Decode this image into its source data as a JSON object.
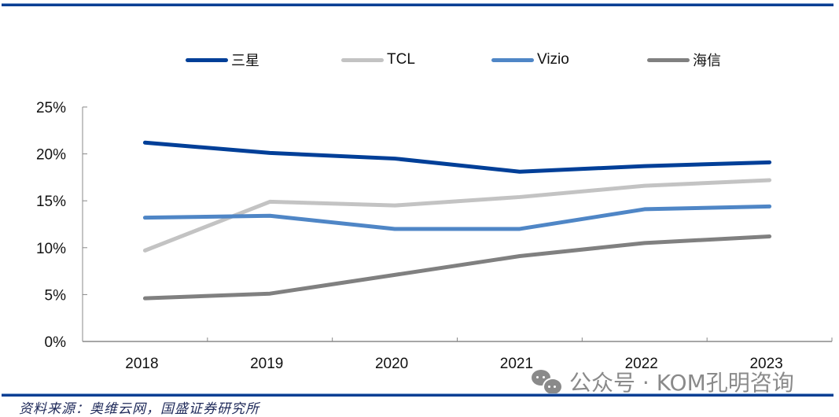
{
  "chart_data": {
    "type": "line",
    "title": "",
    "xlabel": "",
    "ylabel": "",
    "categories": [
      "2018",
      "2019",
      "2020",
      "2021",
      "2022",
      "2023"
    ],
    "ylim": [
      0,
      25
    ],
    "yticks": [
      0,
      5,
      10,
      15,
      20,
      25
    ],
    "ytick_labels": [
      "0%",
      "5%",
      "10%",
      "15%",
      "20%",
      "25%"
    ],
    "grid": false,
    "legend_position": "top",
    "series": [
      {
        "name": "三星",
        "color": "#003f98",
        "values": [
          21.2,
          20.1,
          19.5,
          18.1,
          18.7,
          19.1
        ]
      },
      {
        "name": "TCL",
        "color": "#c3c3c3",
        "values": [
          9.7,
          14.9,
          14.5,
          15.4,
          16.6,
          17.2
        ]
      },
      {
        "name": "Vizio",
        "color": "#4f86c6",
        "values": [
          13.2,
          13.4,
          12.0,
          12.0,
          14.1,
          14.4
        ]
      },
      {
        "name": "海信",
        "color": "#808080",
        "values": [
          4.6,
          5.1,
          7.1,
          9.1,
          10.5,
          11.2
        ]
      }
    ]
  },
  "legend": {
    "items": [
      {
        "label": "三星",
        "color": "#003f98"
      },
      {
        "label": "TCL",
        "color": "#c3c3c3"
      },
      {
        "label": "Vizio",
        "color": "#4f86c6"
      },
      {
        "label": "海信",
        "color": "#808080"
      }
    ]
  },
  "source": "资料来源：奥维云网，国盛证券研究所",
  "watermark": {
    "icon": "wechat-icon",
    "text": "公众号 · KOM孔明咨询"
  },
  "colors": {
    "rule": "#0a3f93",
    "axis": "#888888"
  }
}
